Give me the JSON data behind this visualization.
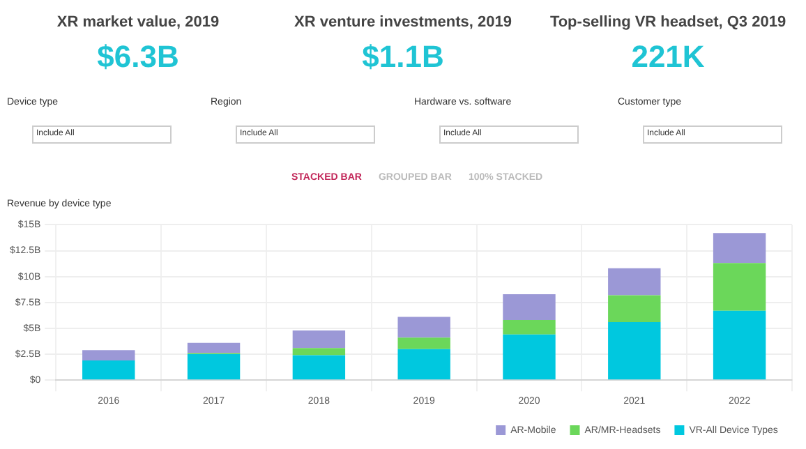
{
  "chart_data": [
    {
      "type": "other",
      "annotations": [
        "XR market value, 2019",
        "$6.3B",
        "XR venture investments, 2019",
        "$1.1B",
        "Top-selling VR headset, Q3 2019",
        "221K",
        "Device type",
        "Include All",
        "Region",
        "Include All",
        "Hardware vs. software",
        "Include All",
        "Customer type",
        "Include All",
        "STACKED BAR",
        "GROUPED BAR",
        "100% STACKED"
      ]
    },
    {
      "type": "bar",
      "title": "Revenue by device type",
      "stacked": true,
      "categories": [
        "2016",
        "2017",
        "2018",
        "2019",
        "2020",
        "2021",
        "2022"
      ],
      "series": [
        {
          "name": "VR-All Device Types",
          "color": "#00c8df",
          "values": [
            1.9,
            2.5,
            2.4,
            3.0,
            4.4,
            5.6,
            6.7
          ]
        },
        {
          "name": "AR/MR-Headsets",
          "color": "#6bd75a",
          "values": [
            0,
            0.1,
            0.7,
            1.1,
            1.4,
            2.6,
            4.6
          ]
        },
        {
          "name": "AR-Mobile",
          "color": "#9b98d6",
          "values": [
            1.0,
            1.0,
            1.7,
            2.0,
            2.5,
            2.6,
            2.9
          ]
        }
      ],
      "ylim": [
        0,
        15
      ],
      "yticks": [
        {
          "value": 0,
          "label": "$0"
        },
        {
          "value": 2.5,
          "label": "$2.5B"
        },
        {
          "value": 5,
          "label": "$5B"
        },
        {
          "value": 7.5,
          "label": "$7.5B"
        },
        {
          "value": 10,
          "label": "$10B"
        },
        {
          "value": 12.5,
          "label": "$12.5B"
        },
        {
          "value": 15,
          "label": "$15B"
        }
      ],
      "grid": true,
      "legend": "bottom"
    }
  ]
}
